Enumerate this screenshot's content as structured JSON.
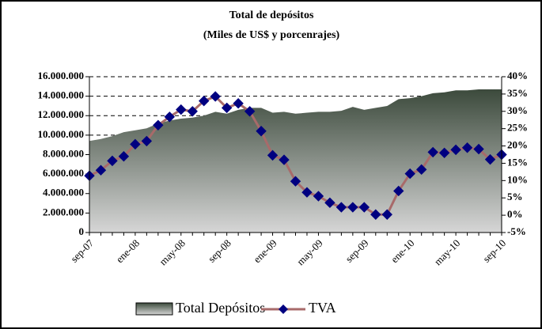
{
  "chart_data": {
    "type": "area",
    "title": "Total de depósitos",
    "subtitle": "(Miles de US$ y porcenrajes)",
    "categories": [
      "sep-07",
      null,
      null,
      null,
      "ene-08",
      null,
      null,
      null,
      "may-08",
      null,
      null,
      null,
      "sep-08",
      null,
      null,
      null,
      "ene-09",
      null,
      null,
      null,
      "may-09",
      null,
      null,
      null,
      "sep-09",
      null,
      null,
      null,
      "ene-10",
      null,
      null,
      null,
      "may-10",
      null,
      null,
      null,
      "sep-10"
    ],
    "series": [
      {
        "name": "Total Depósitos",
        "type": "area",
        "color": "#3c4a3c",
        "values": [
          9400000,
          9600000,
          9900000,
          10300000,
          10500000,
          10700000,
          11200000,
          11500000,
          11700000,
          11800000,
          12000000,
          12400000,
          12200000,
          12600000,
          12800000,
          12800000,
          12300000,
          12400000,
          12200000,
          12300000,
          12400000,
          12400000,
          12500000,
          12900000,
          12600000,
          12800000,
          13000000,
          13700000,
          13800000,
          14000000,
          14300000,
          14400000,
          14600000,
          14600000,
          14700000,
          14700000,
          14700000
        ]
      },
      {
        "name": "TVA",
        "type": "line",
        "axis": "y2",
        "color": "#a86a6a",
        "marker_color": "#000080",
        "values": [
          11.4,
          13,
          15.7,
          17,
          20.5,
          21.4,
          26,
          28.4,
          30.5,
          30,
          33,
          34.3,
          31,
          32.3,
          30,
          24.3,
          17.3,
          16,
          9.8,
          6.6,
          5.5,
          3.6,
          2.3,
          2.3,
          2.3,
          0.2,
          0.2,
          7,
          12,
          13.2,
          18.2,
          18,
          18.9,
          19.5,
          19.1,
          16.1,
          17.5
        ]
      }
    ],
    "ylim": [
      0,
      16000000
    ],
    "yticks": [
      0,
      {
        "value": 2000000,
        "label": "2.000.000"
      },
      {
        "value": 4000000,
        "label": "4.000.000"
      },
      {
        "value": 6000000,
        "label": "6.000.000"
      },
      {
        "value": 8000000,
        "label": "8.000.000"
      },
      {
        "value": 10000000,
        "label": "10.000.000"
      },
      {
        "value": 12000000,
        "label": "12.000.000"
      },
      {
        "value": 14000000,
        "label": "14.000.000"
      },
      {
        "value": 16000000,
        "label": "16.000.000"
      }
    ],
    "y2lim": [
      -5,
      40
    ],
    "y2ticks": [
      {
        "value": -5,
        "label": "-5%"
      },
      {
        "value": 0,
        "label": "0%"
      },
      {
        "value": 5,
        "label": "5%"
      },
      {
        "value": 10,
        "label": "10%"
      },
      {
        "value": 15,
        "label": "15%"
      },
      {
        "value": 20,
        "label": "20%"
      },
      {
        "value": 25,
        "label": "25%"
      },
      {
        "value": 30,
        "label": "30%"
      },
      {
        "value": 35,
        "label": "35%"
      },
      {
        "value": 40,
        "label": "40%"
      }
    ],
    "grid": true,
    "legend": "bottom"
  }
}
